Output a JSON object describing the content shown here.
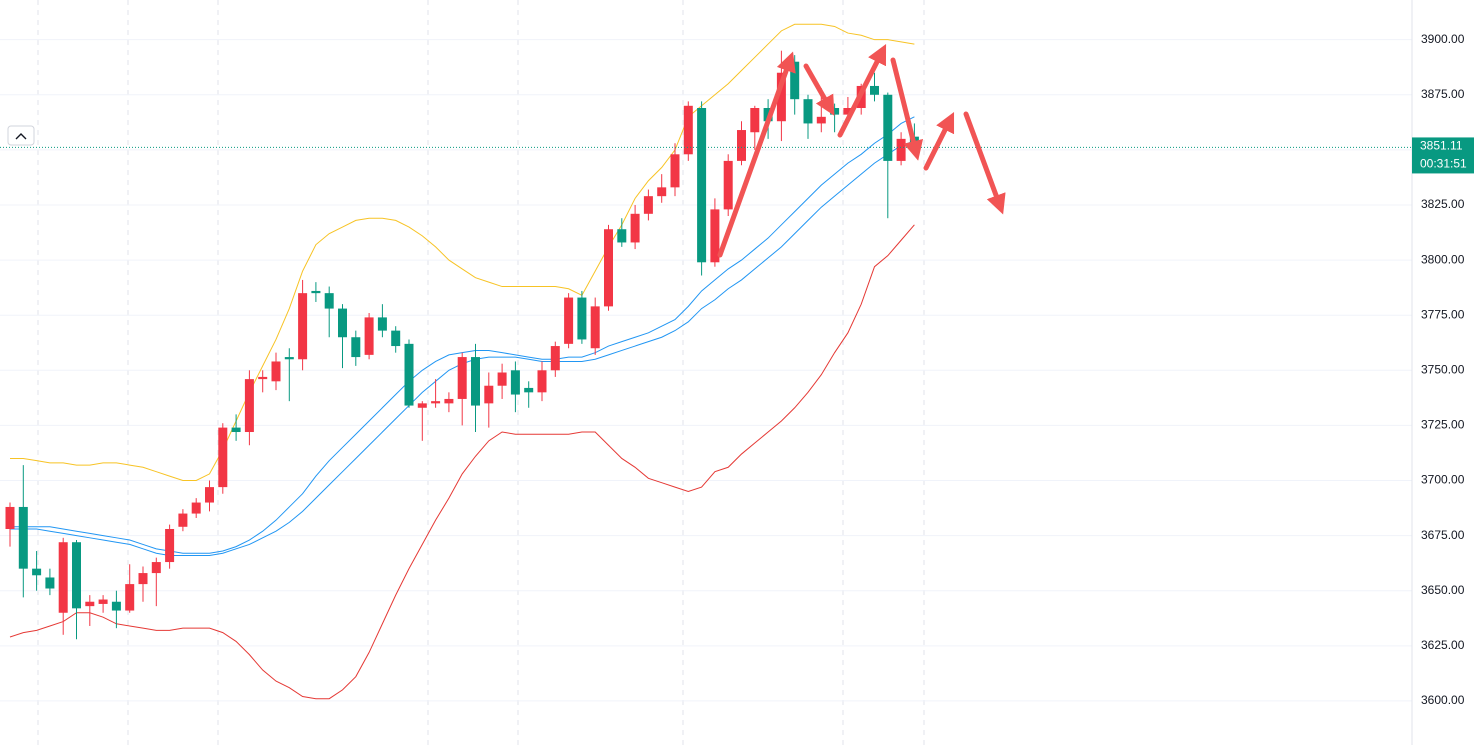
{
  "chart_data": {
    "type": "candlestick",
    "open": [
      3678,
      3688,
      3660,
      3656,
      3640,
      3672,
      3643,
      3644,
      3645,
      3641,
      3653,
      3658,
      3663,
      3679,
      3685,
      3690,
      3697,
      3724,
      3722,
      3746,
      3745,
      3756,
      3755,
      3786,
      3785,
      3778,
      3765,
      3757,
      3774,
      3768,
      3762,
      3733,
      3735,
      3735,
      3737,
      3756,
      3735,
      3743,
      3750,
      3742,
      3740,
      3750,
      3762,
      3783,
      3760,
      3779,
      3814,
      3808,
      3821,
      3829,
      3833,
      3848,
      3869,
      3799,
      3823,
      3845,
      3858,
      3869,
      3863,
      3890,
      3873,
      3862,
      3869,
      3866,
      3869,
      3879,
      3875,
      3845,
      3856
    ],
    "high": [
      3690,
      3707,
      3668,
      3660,
      3674,
      3673,
      3648,
      3648,
      3650,
      3662,
      3661,
      3665,
      3680,
      3687,
      3692,
      3700,
      3726,
      3730,
      3750,
      3750,
      3758,
      3760,
      3791,
      3790,
      3788,
      3780,
      3768,
      3776,
      3780,
      3770,
      3764,
      3736,
      3746,
      3740,
      3758,
      3762,
      3749,
      3753,
      3754,
      3745,
      3754,
      3763,
      3785,
      3786,
      3783,
      3816,
      3819,
      3825,
      3832,
      3839,
      3853,
      3872,
      3872,
      3828,
      3848,
      3863,
      3870,
      3873,
      3895,
      3893,
      3875,
      3878,
      3871,
      3874,
      3880,
      3885,
      3876,
      3858,
      3862
    ],
    "low": [
      3670,
      3647,
      3650,
      3648,
      3630,
      3628,
      3634,
      3640,
      3633,
      3640,
      3645,
      3643,
      3660,
      3677,
      3683,
      3686,
      3694,
      3718,
      3716,
      3740,
      3741,
      3736,
      3750,
      3781,
      3765,
      3751,
      3752,
      3755,
      3765,
      3758,
      3733,
      3718,
      3733,
      3731,
      3725,
      3722,
      3724,
      3737,
      3731,
      3733,
      3736,
      3747,
      3760,
      3762,
      3757,
      3777,
      3806,
      3805,
      3818,
      3826,
      3829,
      3845,
      3793,
      3797,
      3820,
      3843,
      3850,
      3855,
      3854,
      3866,
      3855,
      3858,
      3858,
      3864,
      3866,
      3872,
      3819,
      3843,
      3848
    ],
    "close": [
      3688,
      3660,
      3657,
      3651,
      3672,
      3642,
      3645,
      3646,
      3641,
      3653,
      3658,
      3663,
      3678,
      3685,
      3690,
      3697,
      3724,
      3722,
      3746,
      3747,
      3754,
      3755,
      3785,
      3785,
      3778,
      3765,
      3756,
      3774,
      3768,
      3761,
      3734,
      3735,
      3736,
      3737,
      3756,
      3734,
      3743,
      3749,
      3739,
      3740,
      3750,
      3761,
      3783,
      3764,
      3779,
      3814,
      3808,
      3821,
      3829,
      3833,
      3848,
      3870,
      3799,
      3823,
      3845,
      3859,
      3869,
      3863,
      3885,
      3873,
      3862,
      3865,
      3866,
      3869,
      3879,
      3875,
      3845,
      3855,
      3851.11
    ],
    "up_color": "#f23645",
    "down_color": "#089981",
    "lines": [
      {
        "color": "#f7c325",
        "values": [
          3710,
          3710,
          3709,
          3708,
          3708,
          3707,
          3707,
          3708,
          3708,
          3707,
          3706,
          3704,
          3702,
          3700,
          3700,
          3703,
          3714,
          3727,
          3740,
          3752,
          3764,
          3778,
          3795,
          3807,
          3812,
          3815,
          3818,
          3819,
          3819,
          3818,
          3815,
          3811,
          3806,
          3800,
          3796,
          3792,
          3790,
          3788,
          3788,
          3788,
          3788,
          3788,
          3787,
          3784,
          3795,
          3806,
          3816,
          3828,
          3836,
          3842,
          3850,
          3865,
          3870,
          3875,
          3880,
          3886,
          3892,
          3898,
          3904,
          3907,
          3907,
          3907,
          3906,
          3903,
          3902,
          3900,
          3900,
          3899,
          3898
        ]
      },
      {
        "color": "#2196f3",
        "values": [
          3679,
          3679,
          3679,
          3679,
          3678,
          3677,
          3676,
          3675,
          3674,
          3673,
          3671,
          3669,
          3668,
          3667,
          3667,
          3667,
          3668,
          3670,
          3673,
          3677,
          3682,
          3688,
          3694,
          3702,
          3709,
          3715,
          3721,
          3727,
          3733,
          3739,
          3745,
          3750,
          3754,
          3757,
          3758,
          3759,
          3759,
          3758,
          3757,
          3756,
          3755,
          3755,
          3756,
          3756,
          3758,
          3761,
          3763,
          3765,
          3767,
          3770,
          3773,
          3779,
          3786,
          3791,
          3796,
          3800,
          3805,
          3810,
          3816,
          3822,
          3828,
          3834,
          3839,
          3844,
          3848,
          3853,
          3857,
          3862,
          3865
        ]
      },
      {
        "color": "#2196f3",
        "values": [
          3678,
          3678,
          3678,
          3677,
          3676,
          3675,
          3674,
          3673,
          3672,
          3671,
          3669,
          3667,
          3666,
          3666,
          3666,
          3666,
          3667,
          3669,
          3671,
          3674,
          3677,
          3681,
          3686,
          3692,
          3698,
          3704,
          3710,
          3716,
          3722,
          3728,
          3734,
          3740,
          3745,
          3750,
          3753,
          3755,
          3756,
          3756,
          3756,
          3755,
          3754,
          3754,
          3754,
          3754,
          3755,
          3757,
          3759,
          3761,
          3763,
          3765,
          3768,
          3772,
          3778,
          3782,
          3787,
          3791,
          3796,
          3801,
          3806,
          3812,
          3818,
          3824,
          3829,
          3834,
          3839,
          3844,
          3848,
          3852,
          3854
        ]
      },
      {
        "color": "#e53935",
        "values": [
          3629,
          3631,
          3632,
          3634,
          3636,
          3640,
          3640,
          3638,
          3635,
          3634,
          3633,
          3632,
          3632,
          3633,
          3633,
          3633,
          3631,
          3627,
          3621,
          3614,
          3609,
          3606,
          3602,
          3601,
          3601,
          3605,
          3611,
          3622,
          3635,
          3648,
          3660,
          3671,
          3682,
          3692,
          3703,
          3711,
          3718,
          3722,
          3721,
          3721,
          3721,
          3721,
          3721,
          3722,
          3722,
          3716,
          3710,
          3706,
          3701,
          3699,
          3697,
          3695,
          3697,
          3704,
          3706,
          3712,
          3717,
          3722,
          3727,
          3733,
          3740,
          3748,
          3758,
          3767,
          3780,
          3797,
          3802,
          3809,
          3816
        ]
      }
    ],
    "ylim": [
      3580,
      3918
    ],
    "yticks": [
      {
        "value": 3600,
        "label": "3600.00"
      },
      {
        "value": 3625,
        "label": "3625.00"
      },
      {
        "value": 3650,
        "label": "3650.00"
      },
      {
        "value": 3675,
        "label": "3675.00"
      },
      {
        "value": 3700,
        "label": "3700.00"
      },
      {
        "value": 3725,
        "label": "3725.00"
      },
      {
        "value": 3750,
        "label": "3750.00"
      },
      {
        "value": 3775,
        "label": "3775.00"
      },
      {
        "value": 3800,
        "label": "3800.00"
      },
      {
        "value": 3825,
        "label": "3825.00"
      },
      {
        "value": 3850,
        "label": "3850.00"
      },
      {
        "value": 3875,
        "label": "3875.00"
      },
      {
        "value": 3900,
        "label": "3900.00"
      }
    ],
    "grid": true,
    "last_price": {
      "value": 3851.11,
      "label": "3851.11"
    },
    "countdown": "00:31:51",
    "last_color": "#089981"
  }
}
